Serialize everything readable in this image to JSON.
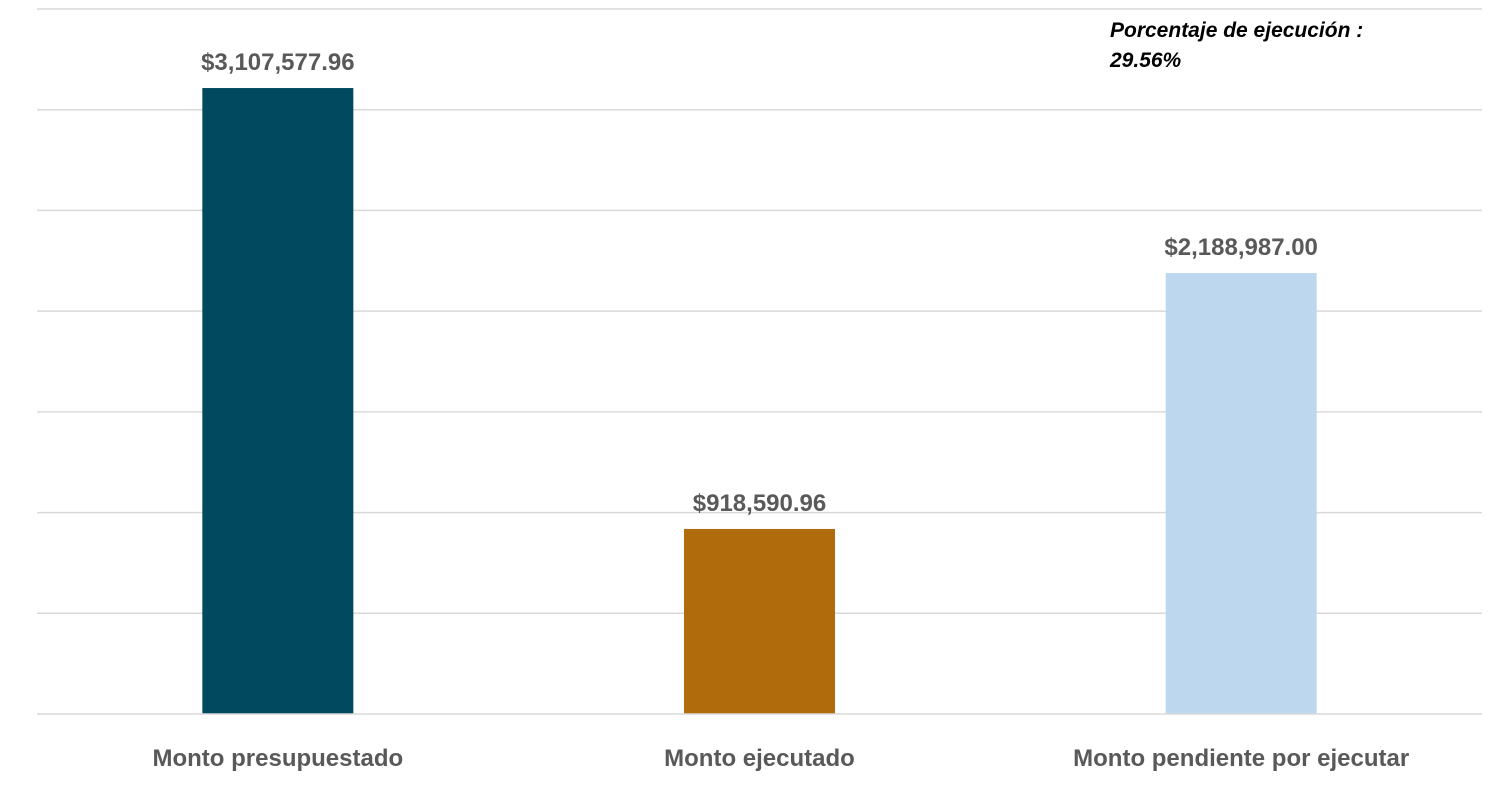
{
  "chart_data": {
    "type": "bar",
    "categories": [
      "Monto presupuestado",
      "Monto ejecutado",
      "Monto pendiente por ejecutar"
    ],
    "values": [
      3107577.96,
      918590.96,
      2188987.0
    ],
    "data_labels": [
      "$3,107,577.96",
      "$918,590.96",
      "$2,188,987.00"
    ],
    "colors": [
      "#01495f",
      "#b06c0c",
      "#bdd7ee"
    ],
    "title": "",
    "xlabel": "",
    "ylabel": "",
    "ylim": [
      0,
      3500000
    ],
    "grid": true,
    "legend": "none",
    "annotation": "Porcentaje de ejecución : 29.56%"
  }
}
